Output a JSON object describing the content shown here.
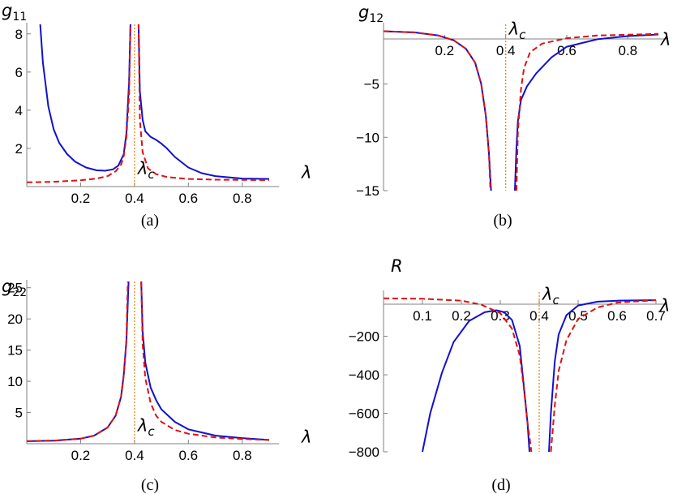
{
  "charts": [
    {
      "id": "a",
      "type": "line",
      "caption": "(a)",
      "ylabel": "g",
      "ylabel_sub": "11",
      "xlabel": "λ",
      "xlim": [
        0,
        0.9
      ],
      "ylim": [
        0,
        8.5
      ],
      "xticks": [
        0.2,
        0.4,
        0.6,
        0.8
      ],
      "xtick_labels": [
        "0.2",
        "0.4",
        "0.6",
        "0.8"
      ],
      "yticks": [
        2,
        4,
        6,
        8
      ],
      "ytick_labels": [
        "2",
        "4",
        "6",
        "8"
      ],
      "marker": {
        "x": 0.4,
        "label": "λ",
        "label_sub": "c"
      },
      "series": [
        {
          "style": "solid",
          "color": "#1010d0",
          "segments": [
            [
              [
                0.05,
                8.5
              ],
              [
                0.06,
                6.5
              ],
              [
                0.08,
                4.2
              ],
              [
                0.1,
                3.0
              ],
              [
                0.12,
                2.3
              ],
              [
                0.15,
                1.7
              ],
              [
                0.18,
                1.3
              ],
              [
                0.22,
                1.0
              ],
              [
                0.26,
                0.85
              ],
              [
                0.29,
                0.83
              ],
              [
                0.32,
                0.9
              ],
              [
                0.34,
                1.1
              ],
              [
                0.36,
                1.7
              ],
              [
                0.37,
                2.8
              ],
              [
                0.38,
                5.5
              ],
              [
                0.385,
                8.5
              ]
            ],
            [
              [
                0.415,
                8.5
              ],
              [
                0.42,
                5.0
              ],
              [
                0.43,
                3.5
              ],
              [
                0.44,
                2.9
              ],
              [
                0.46,
                2.6
              ],
              [
                0.48,
                2.45
              ],
              [
                0.5,
                2.25
              ],
              [
                0.52,
                2.0
              ],
              [
                0.55,
                1.55
              ],
              [
                0.6,
                1.0
              ],
              [
                0.65,
                0.7
              ],
              [
                0.7,
                0.55
              ],
              [
                0.8,
                0.42
              ],
              [
                0.9,
                0.4
              ]
            ]
          ]
        },
        {
          "style": "dashed",
          "color": "#e01010",
          "segments": [
            [
              [
                0,
                0.22
              ],
              [
                0.1,
                0.25
              ],
              [
                0.2,
                0.33
              ],
              [
                0.26,
                0.42
              ],
              [
                0.3,
                0.55
              ],
              [
                0.33,
                0.8
              ],
              [
                0.35,
                1.15
              ],
              [
                0.36,
                1.6
              ],
              [
                0.37,
                2.6
              ],
              [
                0.38,
                4.8
              ],
              [
                0.385,
                8.5
              ]
            ],
            [
              [
                0.415,
                8.5
              ],
              [
                0.42,
                3.5
              ],
              [
                0.43,
                1.8
              ],
              [
                0.45,
                0.95
              ],
              [
                0.48,
                0.65
              ],
              [
                0.52,
                0.5
              ],
              [
                0.6,
                0.4
              ],
              [
                0.7,
                0.36
              ],
              [
                0.9,
                0.34
              ]
            ]
          ]
        }
      ]
    },
    {
      "id": "b",
      "type": "line",
      "caption": "(b)",
      "ylabel": "g",
      "ylabel_sub": "12",
      "xlabel": "λ",
      "xlim": [
        0,
        0.9
      ],
      "ylim": [
        -15,
        0.6
      ],
      "xticks": [
        0.2,
        0.4,
        0.6,
        0.8
      ],
      "xtick_labels": [
        "0.2",
        "0.4",
        "0.6",
        "0.8"
      ],
      "yticks": [
        -5,
        -10,
        -15
      ],
      "ytick_labels": [
        "−5",
        "−10",
        "−15"
      ],
      "marker": {
        "x": 0.4,
        "label": "λ",
        "label_sub": "c"
      },
      "series": [
        {
          "style": "solid",
          "color": "#1010d0",
          "segments": [
            [
              [
                0,
                -0.05
              ],
              [
                0.1,
                -0.15
              ],
              [
                0.18,
                -0.45
              ],
              [
                0.23,
                -0.9
              ],
              [
                0.27,
                -1.7
              ],
              [
                0.3,
                -3.0
              ],
              [
                0.32,
                -5.0
              ],
              [
                0.335,
                -8.0
              ],
              [
                0.345,
                -11.5
              ],
              [
                0.352,
                -15
              ]
            ],
            [
              [
                0.43,
                -15
              ],
              [
                0.435,
                -11.0
              ],
              [
                0.44,
                -8.5
              ],
              [
                0.45,
                -6.5
              ],
              [
                0.47,
                -5.2
              ],
              [
                0.5,
                -4.0
              ],
              [
                0.55,
                -2.5
              ],
              [
                0.6,
                -1.5
              ],
              [
                0.7,
                -0.8
              ],
              [
                0.8,
                -0.5
              ],
              [
                0.9,
                -0.35
              ]
            ]
          ]
        },
        {
          "style": "dashed",
          "color": "#e01010",
          "segments": [
            [
              [
                0,
                -0.05
              ],
              [
                0.1,
                -0.15
              ],
              [
                0.18,
                -0.45
              ],
              [
                0.23,
                -0.9
              ],
              [
                0.27,
                -1.7
              ],
              [
                0.3,
                -3.0
              ],
              [
                0.32,
                -5.0
              ],
              [
                0.335,
                -8.0
              ],
              [
                0.345,
                -11.5
              ],
              [
                0.35,
                -15
              ]
            ],
            [
              [
                0.435,
                -15
              ],
              [
                0.44,
                -9.5
              ],
              [
                0.45,
                -5.5
              ],
              [
                0.46,
                -3.5
              ],
              [
                0.48,
                -2.0
              ],
              [
                0.52,
                -1.2
              ],
              [
                0.6,
                -0.7
              ],
              [
                0.7,
                -0.45
              ],
              [
                0.9,
                -0.3
              ]
            ]
          ]
        }
      ]
    },
    {
      "id": "c",
      "type": "line",
      "caption": "(c)",
      "ylabel": "g",
      "ylabel_sub": "22",
      "xlabel": "λ",
      "xlim": [
        0,
        0.9
      ],
      "ylim": [
        0,
        26
      ],
      "xticks": [
        0.2,
        0.4,
        0.6,
        0.8
      ],
      "xtick_labels": [
        "0.2",
        "0.4",
        "0.6",
        "0.8"
      ],
      "yticks": [
        5,
        10,
        15,
        20,
        25
      ],
      "ytick_labels": [
        "5",
        "10",
        "15",
        "20",
        "25"
      ],
      "marker": {
        "x": 0.4,
        "label": "λ",
        "label_sub": "c"
      },
      "series": [
        {
          "style": "solid",
          "color": "#1010d0",
          "segments": [
            [
              [
                0,
                0.4
              ],
              [
                0.1,
                0.5
              ],
              [
                0.2,
                0.8
              ],
              [
                0.25,
                1.3
              ],
              [
                0.3,
                2.6
              ],
              [
                0.33,
                4.5
              ],
              [
                0.35,
                7.5
              ],
              [
                0.36,
                11.0
              ],
              [
                0.37,
                16.5
              ],
              [
                0.378,
                26
              ]
            ],
            [
              [
                0.425,
                26
              ],
              [
                0.43,
                18.0
              ],
              [
                0.44,
                13.0
              ],
              [
                0.46,
                9.0
              ],
              [
                0.48,
                7.0
              ],
              [
                0.5,
                5.5
              ],
              [
                0.55,
                3.5
              ],
              [
                0.6,
                2.3
              ],
              [
                0.7,
                1.3
              ],
              [
                0.8,
                0.9
              ],
              [
                0.9,
                0.6
              ]
            ]
          ]
        },
        {
          "style": "dashed",
          "color": "#e01010",
          "segments": [
            [
              [
                0,
                0.4
              ],
              [
                0.1,
                0.5
              ],
              [
                0.2,
                0.8
              ],
              [
                0.25,
                1.3
              ],
              [
                0.3,
                2.6
              ],
              [
                0.33,
                4.5
              ],
              [
                0.35,
                7.5
              ],
              [
                0.36,
                11.0
              ],
              [
                0.37,
                16.5
              ],
              [
                0.375,
                26
              ]
            ],
            [
              [
                0.425,
                26
              ],
              [
                0.43,
                16.0
              ],
              [
                0.44,
                10.5
              ],
              [
                0.46,
                6.5
              ],
              [
                0.48,
                4.5
              ],
              [
                0.5,
                3.5
              ],
              [
                0.55,
                2.2
              ],
              [
                0.6,
                1.6
              ],
              [
                0.7,
                1.0
              ],
              [
                0.8,
                0.75
              ],
              [
                0.9,
                0.6
              ]
            ]
          ]
        }
      ]
    },
    {
      "id": "d",
      "type": "line",
      "caption": "(d)",
      "ylabel": "R",
      "ylabel_sub": "",
      "xlabel": "λ",
      "xlim": [
        0,
        0.7
      ],
      "ylim": [
        -800,
        30
      ],
      "xticks": [
        0.1,
        0.2,
        0.3,
        0.4,
        0.5,
        0.6,
        0.7
      ],
      "xtick_labels": [
        "0.1",
        "0.2",
        "0.3",
        "0.4",
        "0.5",
        "0.6",
        "0.7"
      ],
      "yticks": [
        -200,
        -400,
        -600,
        -800
      ],
      "ytick_labels": [
        "−200",
        "−400",
        "−600",
        "−800"
      ],
      "marker": {
        "x": 0.4,
        "label": "λ",
        "label_sub": "c"
      },
      "series": [
        {
          "style": "solid",
          "color": "#1010d0",
          "segments": [
            [
              [
                0.1,
                -800
              ],
              [
                0.12,
                -600
              ],
              [
                0.15,
                -390
              ],
              [
                0.18,
                -230
              ],
              [
                0.22,
                -120
              ],
              [
                0.26,
                -75
              ],
              [
                0.29,
                -65
              ],
              [
                0.31,
                -75
              ],
              [
                0.33,
                -115
              ],
              [
                0.35,
                -250
              ],
              [
                0.36,
                -450
              ],
              [
                0.37,
                -650
              ],
              [
                0.375,
                -800
              ]
            ],
            [
              [
                0.425,
                -800
              ],
              [
                0.43,
                -600
              ],
              [
                0.44,
                -330
              ],
              [
                0.45,
                -190
              ],
              [
                0.47,
                -90
              ],
              [
                0.5,
                -40
              ],
              [
                0.55,
                -20
              ],
              [
                0.6,
                -15
              ],
              [
                0.7,
                -12
              ]
            ]
          ]
        },
        {
          "style": "dashed",
          "color": "#e01010",
          "segments": [
            [
              [
                0,
                -3
              ],
              [
                0.1,
                -5
              ],
              [
                0.2,
                -15
              ],
              [
                0.25,
                -35
              ],
              [
                0.3,
                -80
              ],
              [
                0.33,
                -160
              ],
              [
                0.35,
                -300
              ],
              [
                0.36,
                -460
              ],
              [
                0.37,
                -650
              ],
              [
                0.38,
                -800
              ]
            ],
            [
              [
                0.43,
                -800
              ],
              [
                0.44,
                -560
              ],
              [
                0.45,
                -380
              ],
              [
                0.47,
                -220
              ],
              [
                0.5,
                -110
              ],
              [
                0.55,
                -50
              ],
              [
                0.6,
                -25
              ],
              [
                0.7,
                -12
              ]
            ]
          ]
        }
      ]
    }
  ]
}
